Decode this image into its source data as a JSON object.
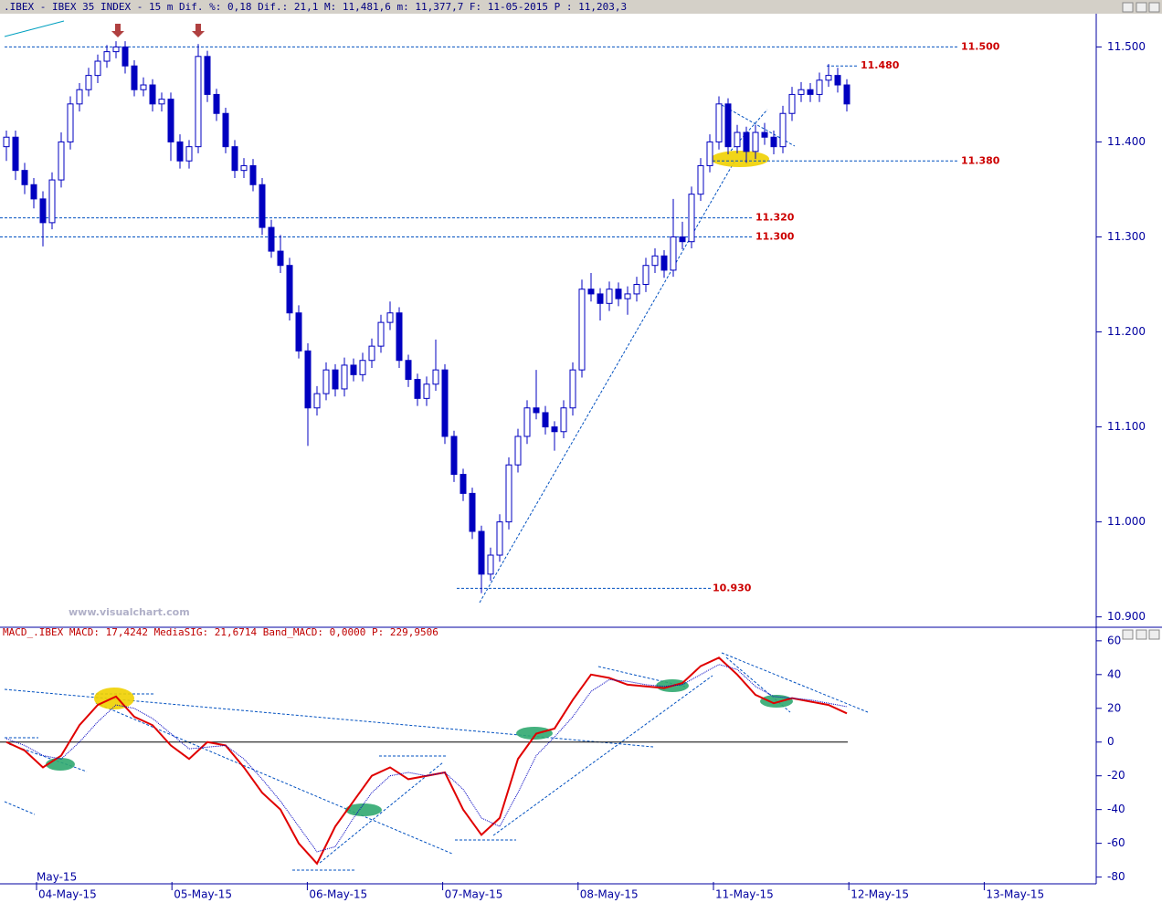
{
  "header": ".IBEX - IBEX 35 INDEX - 15 m Dif. %: 0,18 Dif.: 21,1 M: 11,481,6 m: 11,377,7 F: 11-05-2015 P : 11,203,3",
  "watermark": "www.visualchart.com",
  "chart_data": [
    {
      "type": "candlestick",
      "color": "#0000c0",
      "candles": [
        [
          11395,
          11412,
          11380,
          11405
        ],
        [
          11405,
          11412,
          11360,
          11370
        ],
        [
          11370,
          11378,
          11345,
          11355
        ],
        [
          11355,
          11362,
          11330,
          11340
        ],
        [
          11340,
          11348,
          11290,
          11315
        ],
        [
          11315,
          11368,
          11308,
          11360
        ],
        [
          11360,
          11410,
          11352,
          11400
        ],
        [
          11400,
          11448,
          11392,
          11440
        ],
        [
          11440,
          11462,
          11432,
          11455
        ],
        [
          11455,
          11478,
          11448,
          11470
        ],
        [
          11470,
          11492,
          11462,
          11485
        ],
        [
          11485,
          11502,
          11478,
          11495
        ],
        [
          11495,
          11506,
          11488,
          11500
        ],
        [
          11500,
          11506,
          11472,
          11480
        ],
        [
          11480,
          11486,
          11448,
          11455
        ],
        [
          11455,
          11468,
          11448,
          11460
        ],
        [
          11460,
          11466,
          11432,
          11440
        ],
        [
          11440,
          11452,
          11432,
          11445
        ],
        [
          11445,
          11452,
          11380,
          11400
        ],
        [
          11400,
          11408,
          11372,
          11380
        ],
        [
          11380,
          11402,
          11372,
          11395
        ],
        [
          11395,
          11503,
          11388,
          11490
        ],
        [
          11490,
          11496,
          11442,
          11450
        ],
        [
          11450,
          11456,
          11422,
          11430
        ],
        [
          11430,
          11436,
          11388,
          11395
        ],
        [
          11395,
          11402,
          11362,
          11370
        ],
        [
          11370,
          11383,
          11362,
          11375
        ],
        [
          11375,
          11382,
          11348,
          11355
        ],
        [
          11355,
          11362,
          11302,
          11310
        ],
        [
          11310,
          11318,
          11278,
          11285
        ],
        [
          11285,
          11302,
          11262,
          11270
        ],
        [
          11270,
          11278,
          11212,
          11220
        ],
        [
          11220,
          11228,
          11172,
          11180
        ],
        [
          11180,
          11188,
          11080,
          11120
        ],
        [
          11120,
          11143,
          11112,
          11135
        ],
        [
          11135,
          11168,
          11128,
          11160
        ],
        [
          11160,
          11166,
          11132,
          11140
        ],
        [
          11140,
          11173,
          11132,
          11165
        ],
        [
          11165,
          11172,
          11148,
          11155
        ],
        [
          11155,
          11178,
          11148,
          11170
        ],
        [
          11170,
          11193,
          11162,
          11185
        ],
        [
          11185,
          11218,
          11178,
          11210
        ],
        [
          11210,
          11232,
          11202,
          11220
        ],
        [
          11220,
          11226,
          11162,
          11170
        ],
        [
          11170,
          11176,
          11142,
          11150
        ],
        [
          11150,
          11156,
          11122,
          11130
        ],
        [
          11130,
          11153,
          11122,
          11145
        ],
        [
          11145,
          11192,
          11138,
          11160
        ],
        [
          11160,
          11166,
          11082,
          11090
        ],
        [
          11090,
          11096,
          11042,
          11050
        ],
        [
          11050,
          11056,
          11022,
          11030
        ],
        [
          11030,
          11036,
          10982,
          10990
        ],
        [
          10990,
          10996,
          10925,
          10945
        ],
        [
          10945,
          10973,
          10938,
          10965
        ],
        [
          10965,
          11008,
          10958,
          11000
        ],
        [
          11000,
          11068,
          10992,
          11060
        ],
        [
          11060,
          11098,
          11052,
          11090
        ],
        [
          11090,
          11128,
          11082,
          11120
        ],
        [
          11120,
          11160,
          11108,
          11115
        ],
        [
          11115,
          11122,
          11092,
          11100
        ],
        [
          11100,
          11106,
          11075,
          11095
        ],
        [
          11095,
          11128,
          11088,
          11120
        ],
        [
          11120,
          11168,
          11112,
          11160
        ],
        [
          11160,
          11255,
          11152,
          11245
        ],
        [
          11245,
          11262,
          11232,
          11240
        ],
        [
          11240,
          11246,
          11212,
          11230
        ],
        [
          11230,
          11253,
          11222,
          11245
        ],
        [
          11245,
          11252,
          11227,
          11235
        ],
        [
          11235,
          11248,
          11218,
          11240
        ],
        [
          11240,
          11258,
          11232,
          11250
        ],
        [
          11250,
          11278,
          11242,
          11270
        ],
        [
          11270,
          11288,
          11262,
          11280
        ],
        [
          11280,
          11286,
          11257,
          11265
        ],
        [
          11265,
          11340,
          11258,
          11300
        ],
        [
          11300,
          11316,
          11287,
          11295
        ],
        [
          11295,
          11353,
          11288,
          11345
        ],
        [
          11345,
          11383,
          11338,
          11375
        ],
        [
          11375,
          11408,
          11368,
          11400
        ],
        [
          11400,
          11448,
          11392,
          11440
        ],
        [
          11440,
          11446,
          11387,
          11395
        ],
        [
          11395,
          11418,
          11388,
          11410
        ],
        [
          11410,
          11416,
          11378,
          11390
        ],
        [
          11390,
          11418,
          11382,
          11410
        ],
        [
          11410,
          11420,
          11397,
          11405
        ],
        [
          11405,
          11412,
          11387,
          11395
        ],
        [
          11395,
          11438,
          11388,
          11430
        ],
        [
          11430,
          11458,
          11422,
          11450
        ],
        [
          11450,
          11463,
          11442,
          11455
        ],
        [
          11455,
          11462,
          11442,
          11450
        ],
        [
          11450,
          11473,
          11442,
          11465
        ],
        [
          11465,
          11482,
          11458,
          11470
        ],
        [
          11470,
          11478,
          11452,
          11460
        ],
        [
          11460,
          11466,
          11432,
          11440
        ]
      ],
      "ylim": [
        10891,
        11535
      ],
      "yticks": [
        {
          "value": 11500,
          "label": "11.500"
        },
        {
          "value": 11400,
          "label": "11.400"
        },
        {
          "value": 11300,
          "label": "11.300"
        },
        {
          "value": 11200,
          "label": "11.200"
        },
        {
          "value": 11100,
          "label": "11.100"
        },
        {
          "value": 11000,
          "label": "11.000"
        },
        {
          "value": 10900,
          "label": "10.900"
        }
      ],
      "levels": [
        {
          "value": 11500,
          "label": "11.500"
        },
        {
          "value": 11480,
          "label": "11.480"
        },
        {
          "value": 11380,
          "label": "11.380"
        },
        {
          "value": 11320,
          "label": "11.320"
        },
        {
          "value": 11300,
          "label": "11.300"
        },
        {
          "value": 10930,
          "label": "10.930"
        }
      ],
      "level_color": "#cc0000",
      "categories": [
        "04-May-15",
        "05-May-15",
        "06-May-15",
        "07-May-15",
        "08-May-15",
        "11-May-15",
        "12-May-15",
        "13-May-15"
      ],
      "period_label": "May-15"
    },
    {
      "type": "line",
      "title": "MACD_.IBEX MACD: 17,4242 MediaSIG: 21,6714 Band_MACD: 0,0000 P: 229,9506",
      "series": [
        {
          "color": "#e00000",
          "values": [
            0,
            -5,
            -15,
            -8,
            10,
            22,
            27,
            15,
            10,
            -2,
            -10,
            0,
            -2,
            -15,
            -30,
            -40,
            -60,
            -72,
            -50,
            -35,
            -20,
            -15,
            -22,
            -20,
            -18,
            -40,
            -55,
            -45,
            -10,
            5,
            8,
            25,
            40,
            38,
            34,
            33,
            32,
            35,
            45,
            50,
            40,
            28,
            23,
            26,
            24,
            22,
            17
          ]
        },
        {
          "color": "#0000c0",
          "values": [
            2,
            -2,
            -8,
            -10,
            0,
            12,
            22,
            20,
            14,
            5,
            -4,
            -3,
            -2,
            -10,
            -22,
            -35,
            -50,
            -65,
            -62,
            -45,
            -30,
            -20,
            -18,
            -20,
            -18,
            -28,
            -45,
            -50,
            -30,
            -8,
            3,
            15,
            30,
            37,
            36,
            34,
            33,
            34,
            40,
            46,
            43,
            33,
            27,
            26,
            25,
            23,
            21
          ]
        }
      ],
      "ylim": [
        -84,
        61
      ],
      "yticks": [
        60,
        40,
        20,
        0,
        -20,
        -40,
        -60,
        -80
      ]
    }
  ]
}
